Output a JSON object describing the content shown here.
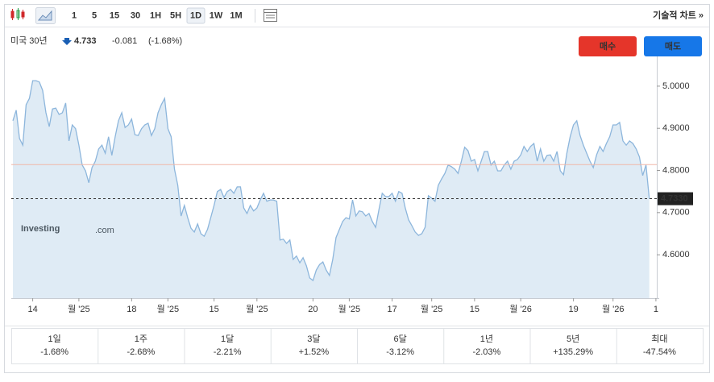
{
  "toolbar": {
    "intervals": [
      "1",
      "5",
      "15",
      "30",
      "1H",
      "5H",
      "1D",
      "1W",
      "1M"
    ],
    "active_interval": 6,
    "link": "기술적 차트 »"
  },
  "header": {
    "name": "미국 30년",
    "price": "4.733",
    "change": "-0.081",
    "change_pct": "(-1.68%)",
    "buy": "매수",
    "sell": "매도"
  },
  "chart_data": {
    "type": "area",
    "color": "#8db6dc",
    "watermark": "Investing",
    "watermark_suffix": ".com",
    "values": [
      4.918,
      4.943,
      4.876,
      4.86,
      4.956,
      4.971,
      5.013,
      5.013,
      5.01,
      4.99,
      4.937,
      4.904,
      4.946,
      4.948,
      4.933,
      4.937,
      4.96,
      4.87,
      4.908,
      4.899,
      4.86,
      4.813,
      4.799,
      4.771,
      4.807,
      4.822,
      4.851,
      4.86,
      4.841,
      4.88,
      4.836,
      4.88,
      4.918,
      4.937,
      4.902,
      4.908,
      4.922,
      4.885,
      4.883,
      4.899,
      4.908,
      4.912,
      4.883,
      4.899,
      4.937,
      4.956,
      4.971,
      4.899,
      4.88,
      4.803,
      4.765,
      4.692,
      4.717,
      4.688,
      4.663,
      4.654,
      4.673,
      4.65,
      4.644,
      4.66,
      4.688,
      4.717,
      4.75,
      4.755,
      4.736,
      4.75,
      4.755,
      4.746,
      4.761,
      4.761,
      4.711,
      4.698,
      4.717,
      4.704,
      4.711,
      4.73,
      4.746,
      4.727,
      4.73,
      4.73,
      4.727,
      4.635,
      4.637,
      4.627,
      4.635,
      4.589,
      4.597,
      4.581,
      4.593,
      4.574,
      4.545,
      4.539,
      4.564,
      4.577,
      4.583,
      4.564,
      4.551,
      4.589,
      4.641,
      4.66,
      4.679,
      4.688,
      4.685,
      4.73,
      4.692,
      4.704,
      4.702,
      4.692,
      4.698,
      4.679,
      4.665,
      4.707,
      4.746,
      4.738,
      4.738,
      4.746,
      4.727,
      4.75,
      4.746,
      4.711,
      4.683,
      4.669,
      4.654,
      4.646,
      4.65,
      4.665,
      4.74,
      4.734,
      4.727,
      4.765,
      4.78,
      4.793,
      4.813,
      4.809,
      4.803,
      4.793,
      4.822,
      4.855,
      4.847,
      4.822,
      4.826,
      4.799,
      4.822,
      4.845,
      4.845,
      4.813,
      4.822,
      4.799,
      4.799,
      4.813,
      4.822,
      4.803,
      4.822,
      4.826,
      4.837,
      4.857,
      4.845,
      4.857,
      4.864,
      4.822,
      4.851,
      4.822,
      4.836,
      4.837,
      4.822,
      4.845,
      4.799,
      4.79,
      4.841,
      4.88,
      4.908,
      4.918,
      4.883,
      4.86,
      4.841,
      4.822,
      4.807,
      4.837,
      4.857,
      4.845,
      4.864,
      4.88,
      4.908,
      4.908,
      4.914,
      4.87,
      4.86,
      4.87,
      4.864,
      4.851,
      4.832,
      4.788,
      4.813,
      4.733
    ],
    "xlim": [
      -0.5,
      196
    ],
    "xticks": [
      {
        "value": 6,
        "label": "14"
      },
      {
        "value": 20,
        "label": "월 '25"
      },
      {
        "value": 36,
        "label": "18"
      },
      {
        "value": 47,
        "label": "월 '25"
      },
      {
        "value": 61,
        "label": "15"
      },
      {
        "value": 74,
        "label": "월 '25"
      },
      {
        "value": 91,
        "label": "20"
      },
      {
        "value": 102,
        "label": "월 '25"
      },
      {
        "value": 115,
        "label": "17"
      },
      {
        "value": 127,
        "label": "월 '25"
      },
      {
        "value": 140,
        "label": "15"
      },
      {
        "value": 154,
        "label": "월 '26"
      },
      {
        "value": 170,
        "label": "19"
      },
      {
        "value": 182,
        "label": "월 '26"
      },
      {
        "value": 195,
        "label": "1"
      }
    ],
    "ylim": [
      4.497,
      5.061
    ],
    "yticks": [
      {
        "value": 4.6,
        "label": "4.6000"
      },
      {
        "value": 4.7,
        "label": "4.7000"
      },
      {
        "value": 4.8,
        "label": "4.8000"
      },
      {
        "value": 4.9,
        "label": "4.9000"
      },
      {
        "value": 5.0,
        "label": "5.0000"
      }
    ],
    "last_price": {
      "value": 4.733,
      "label": "4.7330"
    },
    "previous_close": 4.814
  },
  "performance": [
    {
      "period": "1일",
      "change": "-1.68%",
      "color": "#1a5fb4"
    },
    {
      "period": "1주",
      "change": "-2.68%",
      "color": "#1a5fb4"
    },
    {
      "period": "1달",
      "change": "-2.21%",
      "color": "#1a5fb4"
    },
    {
      "period": "3달",
      "change": "+1.52%",
      "color": "#d0282a"
    },
    {
      "period": "6달",
      "change": "-3.12%",
      "color": "#1a5fb4"
    },
    {
      "period": "1년",
      "change": "-2.03%",
      "color": "#1a5fb4"
    },
    {
      "period": "5년",
      "change": "+135.29%",
      "color": "#d0282a"
    },
    {
      "period": "최대",
      "change": "-47.54%",
      "color": "#1a5fb4"
    }
  ]
}
